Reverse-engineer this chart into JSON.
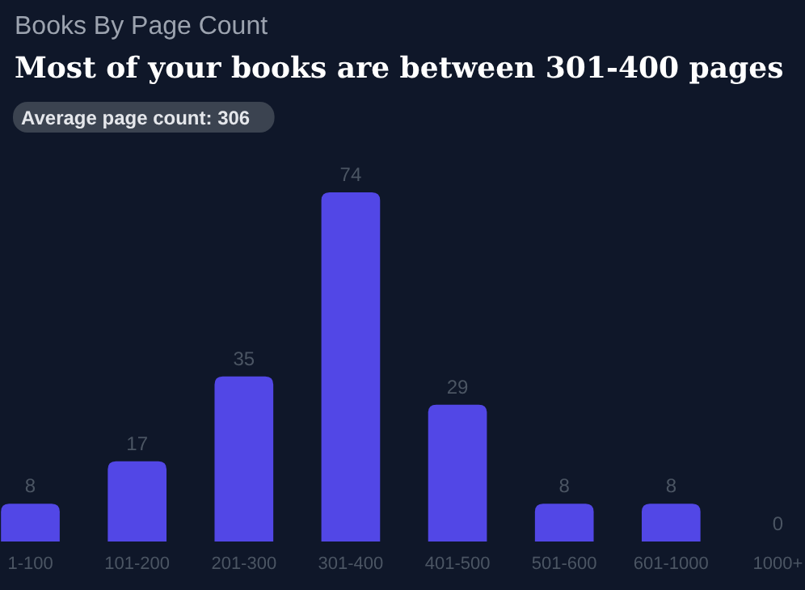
{
  "chart_data": {
    "type": "bar",
    "title": "Books By Page Count",
    "subtitle": "Most of your books are between 301-400 pages",
    "annotations": [
      "Average page count: 306"
    ],
    "categories": [
      "1-100",
      "101-200",
      "201-300",
      "301-400",
      "401-500",
      "501-600",
      "601-1000",
      "1000+"
    ],
    "values": [
      8,
      17,
      35,
      74,
      29,
      8,
      8,
      0
    ],
    "color": "#5247e6",
    "data_labels": true
  }
}
